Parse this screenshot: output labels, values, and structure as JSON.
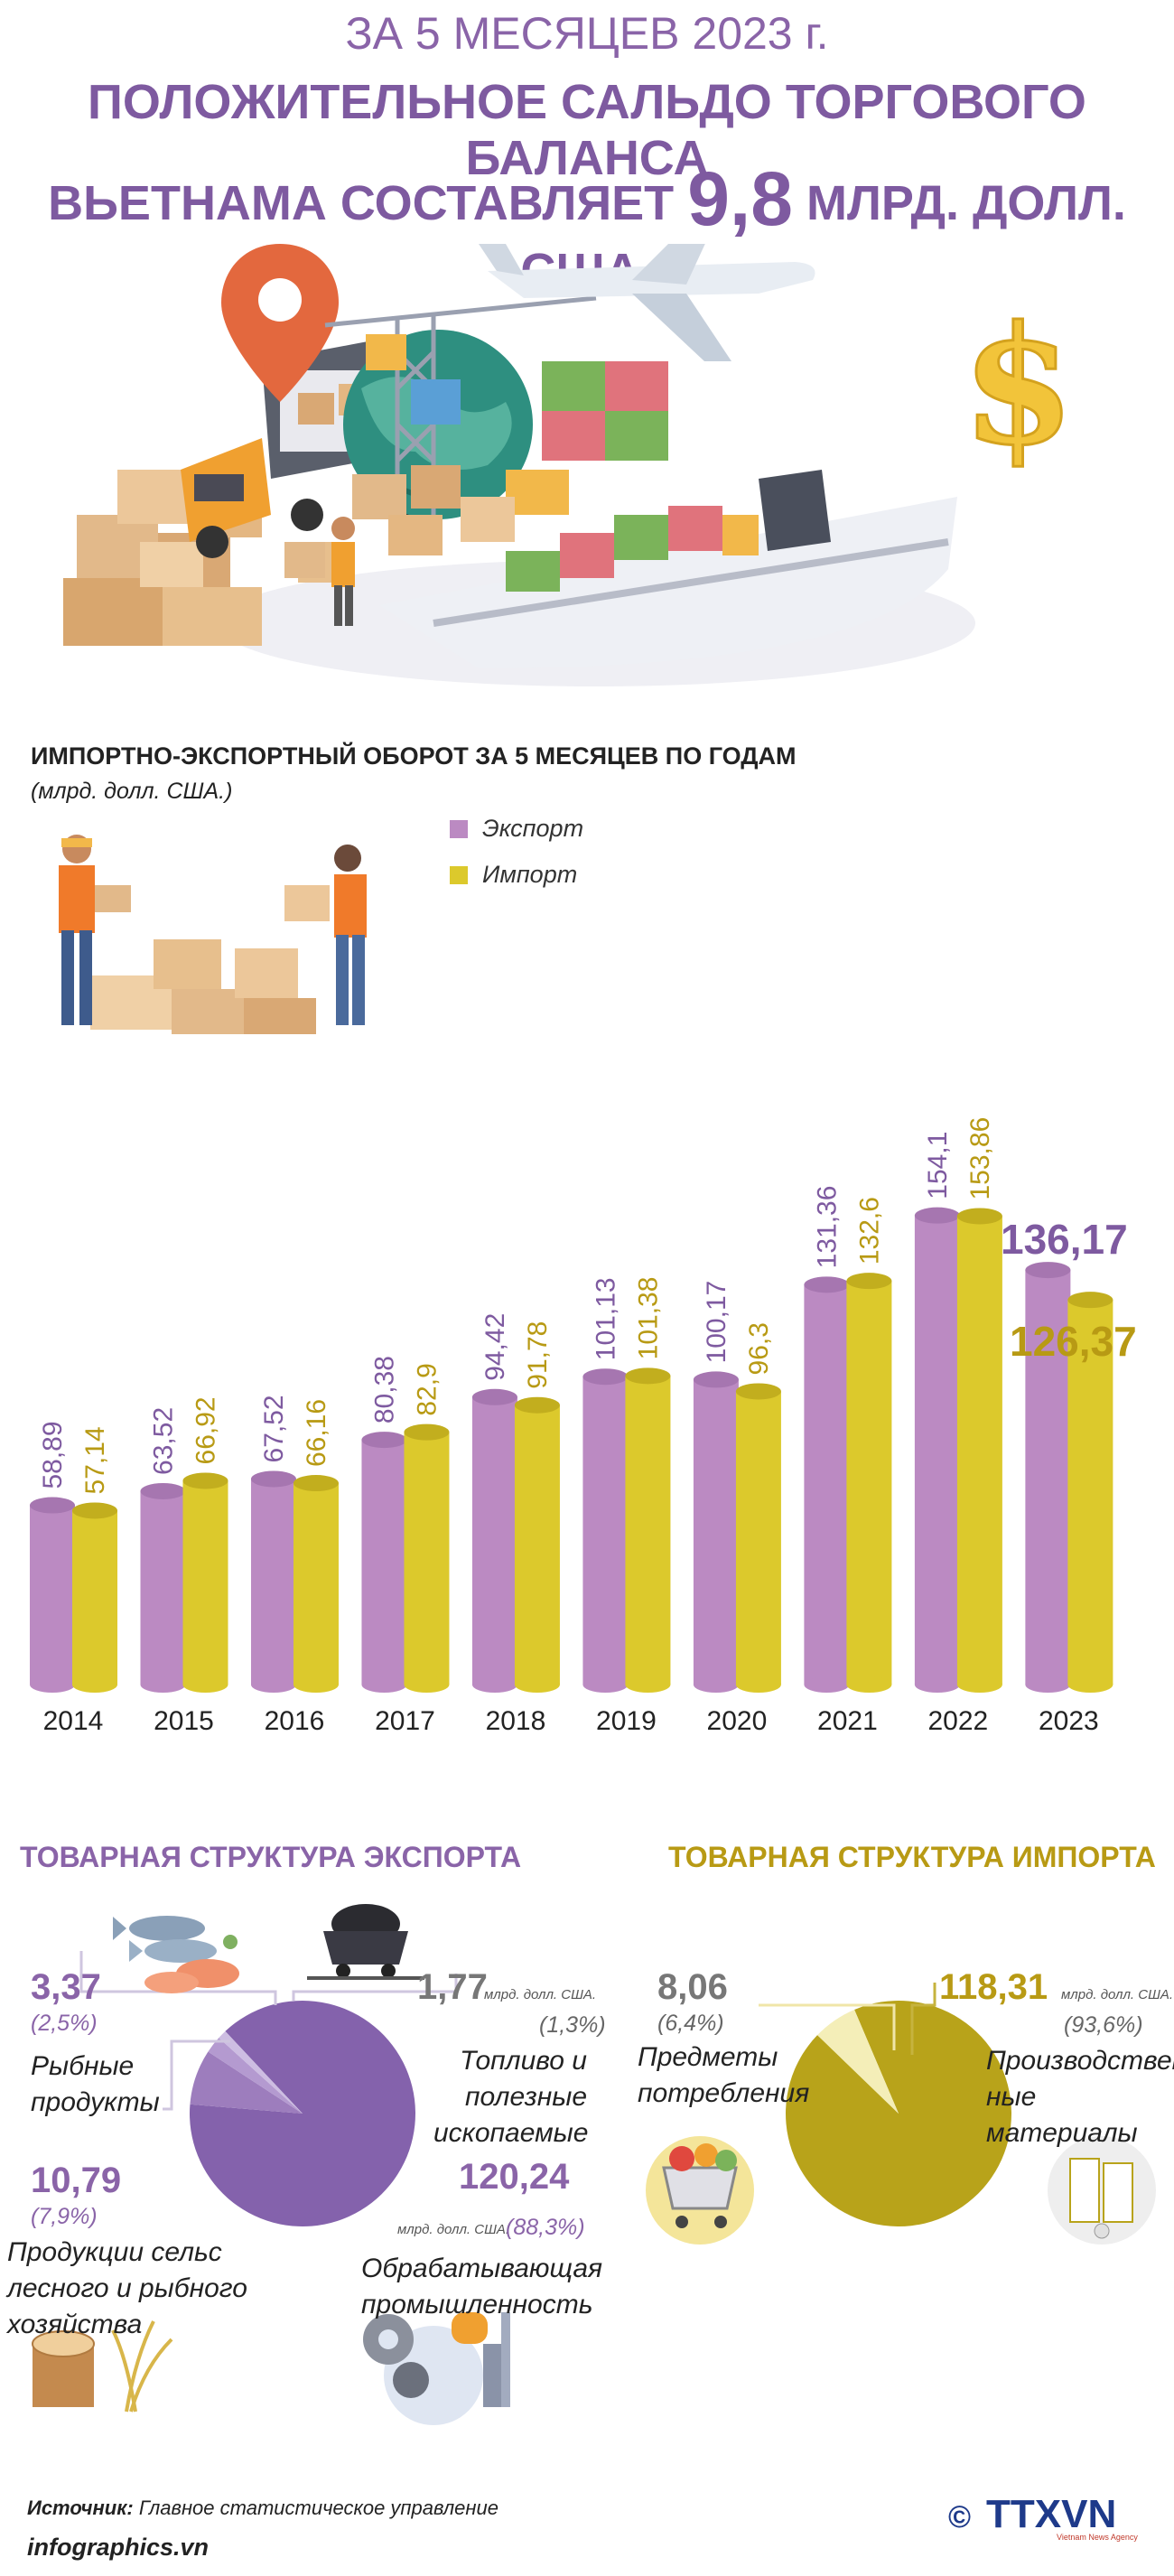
{
  "header": {
    "line1": "ЗА 5 МЕСЯЦЕВ 2023 г.",
    "line2": "ПОЛОЖИТЕЛЬНОЕ САЛЬДО ТОРГОВОГО БАЛАНСА",
    "line3_pre": "ВЬЕТНАМА СОСТАВЛЯЕТ",
    "line3_big": "9,8",
    "line3_post": "МЛРД. ДОЛЛ. США."
  },
  "chart_data": [
    {
      "type": "bar",
      "title": "ИМПОРТНО-ЭКСПОРТНЫЙ ОБОРОТ ЗА 5 МЕСЯЦЕВ ПО ГОДАМ",
      "unit": "(млрд. долл. США.)",
      "categories": [
        "2014",
        "2015",
        "2016",
        "2017",
        "2018",
        "2019",
        "2020",
        "2021",
        "2022",
        "2023"
      ],
      "series": [
        {
          "name": "Экспорт",
          "color": "#bb8ac2",
          "values": [
            58.89,
            63.52,
            67.52,
            80.38,
            94.42,
            101.13,
            100.17,
            131.36,
            154.1,
            136.17
          ],
          "labels": [
            "58,89",
            "63,52",
            "67,52",
            "80,38",
            "94,42",
            "101,13",
            "100,17",
            "131,36",
            "154,1",
            "136,17"
          ]
        },
        {
          "name": "Импорт",
          "color": "#dcc92c",
          "values": [
            57.14,
            66.92,
            66.16,
            82.9,
            91.78,
            101.38,
            96.3,
            132.6,
            153.86,
            126.37
          ],
          "labels": [
            "57,14",
            "66,92",
            "66,16",
            "82,9",
            "91,78",
            "101,38",
            "96,3",
            "132,6",
            "153,86",
            "126,37"
          ]
        }
      ],
      "ylim": [
        0,
        165
      ]
    },
    {
      "type": "pie",
      "title": "ТОВАРНАЯ СТРУКТУРА ЭКСПОРТА",
      "unit": "млрд. долл. США.",
      "slices": [
        {
          "label": "Обрабатывающая промышленность",
          "value": 120.24,
          "value_text": "120,24",
          "pct": "(88,3%)",
          "color": "#8462ac"
        },
        {
          "label": "Продукции сельс лесного и рыбного хозяйства",
          "value": 10.79,
          "value_text": "10,79",
          "pct": "(7,9%)",
          "color": "#9d7dbd"
        },
        {
          "label": "Рыбные продукты",
          "value": 3.37,
          "value_text": "3,37",
          "pct": "(2,5%)",
          "color": "#b49ad0"
        },
        {
          "label": "Топливо и полезные ископаемые",
          "value": 1.77,
          "value_text": "1,77",
          "pct": "(1,3%)",
          "color": "#cdbde2"
        }
      ]
    },
    {
      "type": "pie",
      "title": "ТОВАРНАЯ СТРУКТУРА ИМПОРТА",
      "unit": "млрд. долл. США.",
      "slices": [
        {
          "label": "Производствен ные материалы",
          "value": 118.31,
          "value_text": "118,31",
          "pct": "(93,6%)",
          "color": "#b8a31a"
        },
        {
          "label": "Предметы потребления",
          "value": 8.06,
          "value_text": "8,06",
          "pct": "(6,4%)",
          "color": "#f4eeb8"
        }
      ]
    }
  ],
  "export_pie_labels": {
    "fish_label": "Рыбные\nпродукты",
    "fuel_label": "Топливо и\nполезные\nископаемые",
    "agri_label": "Продукции сельс\nлесного и рыбного\nхозяйства",
    "mfg_label": "Обрабатывающая\nпромышленность"
  },
  "import_pie_labels": {
    "cons_label": "Предметы\nпотребления",
    "prod_label": "Производствен\nные материалы"
  },
  "footer": {
    "source_label": "Источник:",
    "source_text": "Главное статистическое управление",
    "site": "infographics.vn",
    "logo_text": "TTXVN",
    "logo_sub": "Vietnam News Agency",
    "copyright": "©"
  },
  "colors": {
    "export": "#bb8ac2",
    "import": "#dcc92c",
    "header": "#7e5aa0"
  }
}
